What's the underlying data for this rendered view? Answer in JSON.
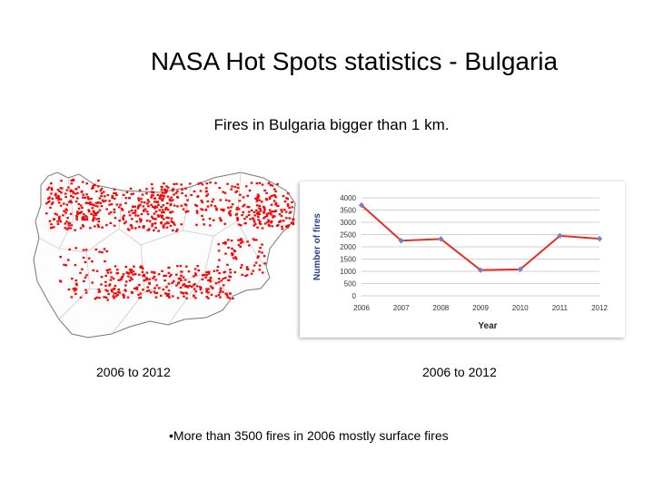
{
  "slide": {
    "title": "NASA Hot Spots statistics - Bulgaria",
    "subtitle": "Fires in Bulgaria bigger than 1 km.",
    "caption_left": "2006 to 2012",
    "caption_right": "2006 to 2012",
    "bullet_text": "•More than 3500 fires in 2006 mostly surface fires"
  },
  "colors": {
    "line": "#e0302a",
    "marker": "#7f7fbf",
    "grid": "#d0d0d0",
    "fire_points": "#ff0000",
    "ylabel": "#2a3f8f"
  },
  "chart_data": {
    "type": "line",
    "title": "",
    "xlabel": "Year",
    "ylabel": "Number of fires",
    "categories": [
      "2006",
      "2007",
      "2008",
      "2009",
      "2010",
      "2011",
      "2012"
    ],
    "values": [
      3700,
      2250,
      2320,
      1050,
      1080,
      2450,
      2330
    ],
    "ylim": [
      0,
      4000
    ],
    "yticks": [
      0,
      500,
      1000,
      1500,
      2000,
      2500,
      3000,
      3500,
      4000
    ],
    "grid": true,
    "legend": "none"
  }
}
